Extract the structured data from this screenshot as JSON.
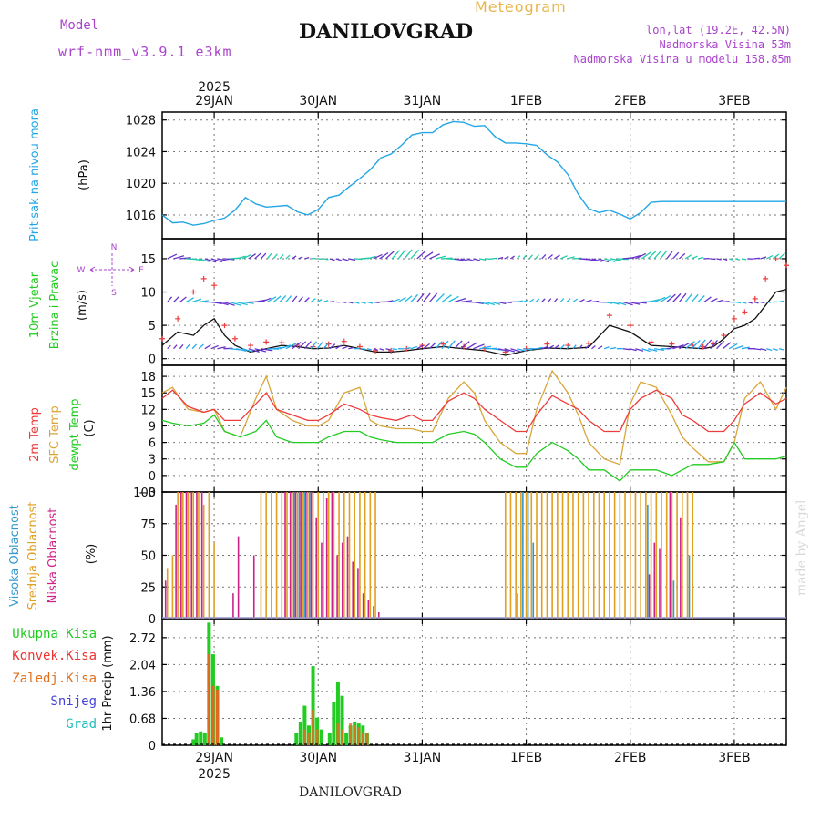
{
  "header": {
    "model_label": "Model",
    "model_name": "wrf-nmm_v3.9.1 e3km",
    "product": "Meteogram",
    "station": "DANILOVGRAD",
    "location_line1": "lon,lat (19.2E, 42.5N)",
    "location_line2": "Nadmorska Visina 53m",
    "location_line3": "Nadmorska Visina u modelu 158.85m",
    "footer_station": "DANILOVGRAD",
    "watermark": "made by Angel"
  },
  "colors": {
    "pressure": "#22a6e6",
    "temp2m": "#ee3b3b",
    "sfc": "#d9a63a",
    "dewpt": "#22cc22",
    "high_cloud": "#3399cc",
    "mid_cloud": "#e0a020",
    "low_cloud": "#cc2288",
    "total_precip": "#22cc22",
    "conv_precip": "#ee3333",
    "grid_precip": "#e07020",
    "snow": "#4444dd",
    "grad": "#22bbbb",
    "wind_label": "#22cc22",
    "compass": "#aa44cc"
  },
  "axis": {
    "top_year": "2025",
    "bottom_year": "2025",
    "days": [
      "29JAN",
      "30JAN",
      "31JAN",
      "1FEB",
      "2FEB",
      "3FEB"
    ],
    "time_range_days": [
      -0.5,
      5.5
    ]
  },
  "legends": {
    "pressure": [
      "Pritisak na nivou mora",
      "(hPa)"
    ],
    "wind": [
      "10m Vjetar",
      "Brzina i Pravac",
      "(m/s)"
    ],
    "compass": {
      "n": "N",
      "s": "S",
      "e": "E",
      "w": "W"
    },
    "temp": [
      "2m Temp",
      "SFC Temp",
      "dewpt Temp",
      "(C)"
    ],
    "cloud": [
      "Visoka Oblacnost",
      "Srednja Oblacnost",
      "Niska Oblacnost",
      "(%)"
    ],
    "precip": [
      "Ukupna Kisa",
      "Konvek.Kisa",
      "Zaledj.Kisa",
      "Snijeg",
      "Grad"
    ],
    "precip_unit": "1hr Precip (mm)"
  },
  "chart_data": [
    {
      "id": "pressure",
      "type": "line",
      "title": "Pritisak na nivou mora",
      "ylabel": "(hPa)",
      "ylim": [
        1013,
        1029
      ],
      "yticks": [
        1016,
        1020,
        1024,
        1028
      ],
      "x": [
        -0.5,
        -0.4,
        -0.3,
        -0.2,
        -0.1,
        0,
        0.1,
        0.2,
        0.3,
        0.4,
        0.5,
        0.6,
        0.7,
        0.8,
        0.9,
        1,
        1.1,
        1.2,
        1.3,
        1.4,
        1.5,
        1.6,
        1.7,
        1.8,
        1.9,
        2,
        2.1,
        2.2,
        2.3,
        2.4,
        2.5,
        2.6,
        2.7,
        2.8,
        2.9,
        3,
        3.1,
        3.2,
        3.3,
        3.4,
        3.5,
        3.6,
        3.7,
        3.8,
        3.9,
        4,
        4.1,
        4.2,
        4.3,
        4.4,
        4.5,
        4.6,
        4.7,
        4.8,
        4.9,
        5,
        5.1,
        5.2,
        5.3,
        5.4,
        5.5
      ],
      "series": [
        {
          "name": "MSLP",
          "values": [
            1016,
            1015,
            1015.1,
            1014.7,
            1014.9,
            1015.3,
            1015.6,
            1016.6,
            1018.2,
            1017.4,
            1017.0,
            1017.1,
            1017.2,
            1016.4,
            1016.0,
            1016.7,
            1018.2,
            1018.5,
            1019.6,
            1020.6,
            1021.7,
            1023.2,
            1023.7,
            1024.8,
            1026.1,
            1026.4,
            1026.4,
            1027.4,
            1027.8,
            1027.7,
            1027.2,
            1027.3,
            1025.9,
            1025.1,
            1025.1,
            1025.0,
            1024.8,
            1023.6,
            1022.7,
            1021.1,
            1018.6,
            1016.8,
            1016.3,
            1016.6,
            1016.1,
            1015.5,
            1016.3,
            1017.6,
            1017.7,
            1017.7,
            1017.7,
            1017.7,
            1017.7,
            1017.7,
            1017.7,
            1017.7,
            1017.7,
            1017.7,
            1017.7,
            1017.7,
            1017.7
          ]
        }
      ]
    },
    {
      "id": "wind",
      "type": "line",
      "title": "10m Vjetar Brzina i Pravac",
      "ylabel": "(m/s)",
      "ylim": [
        -1,
        18
      ],
      "yticks": [
        0,
        5,
        10,
        15
      ],
      "x": [
        -0.5,
        -0.35,
        -0.2,
        -0.1,
        0,
        0.1,
        0.2,
        0.35,
        0.5,
        0.65,
        0.8,
        0.95,
        1.1,
        1.25,
        1.4,
        1.55,
        1.7,
        1.85,
        2,
        2.2,
        2.4,
        2.6,
        2.8,
        3,
        3.2,
        3.4,
        3.6,
        3.8,
        4,
        4.2,
        4.4,
        4.6,
        4.7,
        4.8,
        4.9,
        5,
        5.1,
        5.2,
        5.3,
        5.4,
        5.5
      ],
      "series": [
        {
          "name": "Wind speed",
          "values": [
            2,
            4,
            3.5,
            5,
            6,
            3.5,
            2,
            1,
            1.5,
            2,
            1.8,
            1.5,
            1.6,
            2,
            1.5,
            1,
            1,
            1.2,
            1.5,
            1.8,
            1.5,
            1.2,
            0.5,
            1.2,
            1.6,
            1.5,
            1.7,
            5,
            4,
            2,
            1.8,
            1.6,
            1.5,
            1.8,
            3,
            4.5,
            5,
            6,
            8,
            10,
            10.4
          ]
        },
        {
          "name": "Wind gust",
          "values": [
            3,
            6,
            10,
            12,
            11,
            5,
            3,
            2,
            2.5,
            2.4,
            2,
            1.8,
            2.2,
            2.6,
            1.8,
            1.2,
            1.2,
            1.5,
            2,
            2.2,
            1.8,
            1.5,
            1,
            1.5,
            2.2,
            2,
            2.3,
            6.5,
            5,
            2.5,
            2.2,
            2,
            1.8,
            2.2,
            3.5,
            6,
            7,
            9,
            12,
            15,
            14
          ]
        }
      ]
    },
    {
      "id": "temperature",
      "type": "line",
      "title": "2m Temp / SFC Temp / dewpt Temp",
      "ylabel": "(C)",
      "ylim": [
        -3,
        20
      ],
      "yticks": [
        -3,
        0,
        3,
        6,
        9,
        12,
        15,
        18
      ],
      "x": [
        -0.5,
        -0.4,
        -0.25,
        -0.1,
        0,
        0.1,
        0.25,
        0.4,
        0.5,
        0.6,
        0.75,
        0.9,
        1,
        1.1,
        1.25,
        1.4,
        1.5,
        1.6,
        1.75,
        1.9,
        2,
        2.1,
        2.25,
        2.4,
        2.5,
        2.6,
        2.75,
        2.9,
        3,
        3.1,
        3.25,
        3.4,
        3.5,
        3.6,
        3.75,
        3.9,
        4,
        4.1,
        4.25,
        4.4,
        4.5,
        4.6,
        4.75,
        4.9,
        5,
        5.1,
        5.25,
        5.4,
        5.5
      ],
      "series": [
        {
          "name": "2m Temp",
          "values": [
            14,
            15.5,
            12.5,
            11.5,
            12,
            10,
            10,
            13,
            15,
            12,
            11,
            10,
            10,
            11,
            13,
            12,
            11,
            10.5,
            10,
            11,
            10,
            10,
            13.5,
            15,
            14,
            12,
            10,
            8,
            8,
            11,
            14.5,
            13,
            12,
            10,
            8,
            8,
            12,
            14,
            15.5,
            14,
            11,
            10,
            8,
            8,
            10,
            13,
            15,
            13,
            14
          ]
        },
        {
          "name": "SFC Temp",
          "values": [
            15,
            16,
            12,
            11.5,
            12,
            8,
            7,
            14,
            18,
            12,
            10,
            9,
            9,
            10,
            15,
            16,
            10,
            9,
            8.5,
            8.5,
            8,
            8,
            14,
            17,
            15,
            10,
            6,
            4,
            4,
            12,
            19,
            15,
            11,
            6,
            3,
            2,
            13,
            17,
            16,
            11,
            7,
            5,
            2.5,
            2.5,
            6,
            14,
            17,
            12,
            16
          ]
        },
        {
          "name": "dewpt Temp",
          "values": [
            10,
            9.5,
            9,
            9.5,
            11,
            8,
            7,
            8,
            10,
            7,
            6,
            6,
            6,
            7,
            8,
            8,
            7,
            6.5,
            6,
            6,
            6,
            6,
            7.5,
            8,
            7.5,
            6,
            3,
            1.5,
            1.5,
            4,
            6,
            4.5,
            3,
            1,
            1,
            -1,
            1,
            1,
            1,
            0,
            1,
            2,
            2,
            2.5,
            6,
            3,
            3,
            3,
            3.5
          ]
        }
      ]
    },
    {
      "id": "cloud",
      "type": "bar",
      "title": "Visoka / Srednja / Niska Oblacnost",
      "ylabel": "(%)",
      "ylim": [
        0,
        100
      ],
      "yticks": [
        0,
        25,
        50,
        75,
        100
      ],
      "x": [
        -0.45,
        -0.4,
        -0.35,
        -0.3,
        -0.25,
        -0.2,
        -0.15,
        -0.1,
        -0.05,
        0,
        0.1,
        0.2,
        0.25,
        0.3,
        0.4,
        0.45,
        0.5,
        0.55,
        0.6,
        0.65,
        0.7,
        0.75,
        0.8,
        0.85,
        0.9,
        0.95,
        1.0,
        1.05,
        1.1,
        1.15,
        1.2,
        1.25,
        1.3,
        1.35,
        1.4,
        1.45,
        1.5,
        1.55,
        1.6,
        1.65,
        1.7,
        1.75,
        1.8,
        1.85,
        1.9,
        2.0,
        2.1,
        2.2,
        2.3,
        2.4,
        2.5,
        2.6,
        2.65,
        2.7,
        2.75,
        2.8,
        2.85,
        2.9,
        2.95,
        3.0,
        3.05,
        3.1,
        3.15,
        3.2,
        3.25,
        3.3,
        3.35,
        3.4,
        3.45,
        3.5,
        3.55,
        3.6,
        3.65,
        3.7,
        3.75,
        3.8,
        3.85,
        3.9,
        3.95,
        4.0,
        4.05,
        4.1,
        4.15,
        4.2,
        4.25,
        4.3,
        4.35,
        4.4,
        4.45,
        4.5,
        4.55,
        4.6
      ],
      "series": [
        {
          "name": "Visoka Oblacnost",
          "values": [
            0,
            0,
            0,
            0,
            0,
            0,
            0,
            0,
            0,
            0,
            0,
            0,
            0,
            0,
            0,
            0,
            0,
            0,
            0,
            0,
            0,
            100,
            100,
            100,
            100,
            0,
            0,
            0,
            0,
            0,
            0,
            0,
            0,
            0,
            0,
            0,
            0,
            0,
            0,
            0,
            0,
            0,
            0,
            0,
            0,
            0,
            0,
            0,
            0,
            0,
            0,
            0,
            0,
            0,
            0,
            0,
            0,
            20,
            100,
            100,
            60,
            0,
            0,
            0,
            0,
            0,
            0,
            0,
            0,
            0,
            0,
            0,
            0,
            0,
            0,
            0,
            0,
            0,
            0,
            0,
            0,
            0,
            90,
            0,
            0,
            0,
            0,
            30,
            0,
            0,
            50,
            0
          ]
        },
        {
          "name": "Srednja Oblacnost",
          "values": [
            40,
            50,
            100,
            100,
            100,
            100,
            100,
            90,
            100,
            60,
            0,
            0,
            0,
            0,
            0,
            100,
            100,
            100,
            100,
            100,
            100,
            100,
            100,
            100,
            100,
            100,
            100,
            100,
            100,
            100,
            100,
            100,
            100,
            100,
            100,
            100,
            100,
            100,
            0,
            0,
            0,
            0,
            0,
            0,
            0,
            0,
            0,
            0,
            0,
            0,
            0,
            0,
            0,
            0,
            0,
            100,
            100,
            100,
            100,
            100,
            100,
            100,
            100,
            100,
            100,
            100,
            100,
            100,
            100,
            100,
            100,
            100,
            100,
            100,
            100,
            100,
            100,
            100,
            100,
            100,
            100,
            100,
            100,
            100,
            100,
            100,
            100,
            100,
            100,
            100,
            100,
            100
          ]
        },
        {
          "name": "Niska Oblacnost",
          "values": [
            30,
            0,
            90,
            100,
            100,
            100,
            100,
            100,
            0,
            0,
            0,
            20,
            65,
            0,
            50,
            0,
            0,
            0,
            0,
            0,
            100,
            100,
            100,
            100,
            100,
            100,
            80,
            60,
            95,
            100,
            50,
            60,
            65,
            45,
            40,
            20,
            15,
            10,
            5,
            0,
            0,
            0,
            0,
            0,
            0,
            0,
            0,
            0,
            0,
            0,
            0,
            0,
            0,
            0,
            0,
            0,
            0,
            0,
            0,
            0,
            0,
            0,
            0,
            0,
            0,
            0,
            0,
            0,
            0,
            0,
            0,
            0,
            0,
            0,
            0,
            0,
            0,
            0,
            0,
            0,
            0,
            0,
            0,
            35,
            60,
            55,
            0,
            100,
            0,
            80,
            0,
            0
          ]
        }
      ]
    },
    {
      "id": "precip",
      "type": "bar",
      "title": "1hr Precip",
      "ylabel": "1hr Precip (mm)",
      "ylim": [
        0,
        3.2
      ],
      "yticks": [
        0,
        0.68,
        1.36,
        2.04,
        2.72
      ],
      "yticklabels": [
        "0",
        "0.68",
        "1.36",
        "2.04",
        "2.72"
      ],
      "x": [
        -0.2,
        -0.17,
        -0.13,
        -0.09,
        -0.05,
        -0.01,
        0.03,
        0.07,
        0.11,
        0.79,
        0.83,
        0.87,
        0.91,
        0.95,
        0.99,
        1.03,
        1.07,
        1.11,
        1.15,
        1.19,
        1.23,
        1.27,
        1.31,
        1.35,
        1.39,
        1.43,
        1.47,
        1.51,
        1.55,
        1.59,
        1.63
      ],
      "series": [
        {
          "name": "Ukupna Kisa",
          "values": [
            0.15,
            0.3,
            0.35,
            0.3,
            3.1,
            2.3,
            1.5,
            0.2,
            0,
            0.3,
            0.6,
            1.0,
            0.5,
            2.0,
            0.7,
            0.4,
            0,
            0.3,
            1.1,
            1.6,
            1.25,
            0.3,
            0.5,
            0.6,
            0.55,
            0.5,
            0.3,
            0,
            0,
            0,
            0
          ]
        },
        {
          "name": "Konvek.Kisa",
          "values": [
            0,
            0,
            0,
            0,
            2.3,
            1.5,
            1.4,
            0,
            0,
            0,
            0,
            0,
            0,
            0,
            0,
            0,
            0,
            0,
            0,
            0,
            0,
            0,
            0,
            0,
            0,
            0,
            0,
            0,
            0,
            0,
            0
          ]
        },
        {
          "name": "Zaledj.Kisa",
          "values": [
            0,
            0,
            0,
            0,
            2.3,
            1.5,
            1.4,
            0,
            0,
            0,
            0,
            0.4,
            0.3,
            0.9,
            0.4,
            0,
            0,
            0,
            0,
            0.55,
            0.4,
            0,
            0.55,
            0.5,
            0.45,
            0.3,
            0.3,
            0,
            0,
            0,
            0
          ]
        }
      ]
    }
  ]
}
